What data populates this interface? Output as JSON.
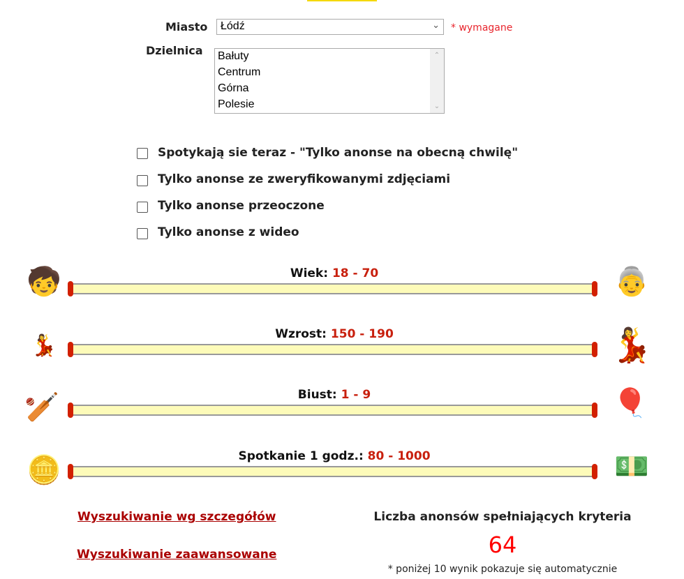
{
  "form": {
    "city_label": "Miasto",
    "city_value": "Łódź",
    "required_note": "* wymagane",
    "district_label": "Dzielnica",
    "districts": [
      "Bałuty",
      "Centrum",
      "Górna",
      "Polesie"
    ]
  },
  "checkboxes": [
    {
      "label": "Spotykają sie teraz - \"Tylko anonse na obecną chwilę\"",
      "checked": false
    },
    {
      "label": "Tylko anonse ze zweryfikowanymi zdjęciami",
      "checked": false
    },
    {
      "label": "Tylko anonse przeoczone",
      "checked": false
    },
    {
      "label": "Tylko anonse z wideo",
      "checked": false
    }
  ],
  "sliders": [
    {
      "label": "Wiek:",
      "range": "18 - 70",
      "min": 18,
      "max": 70,
      "left_icon": "boy-icon",
      "right_icon": "old-woman-icon"
    },
    {
      "label": "Wzrost:",
      "range": "150 - 190",
      "min": 150,
      "max": 190,
      "left_icon": "short-woman-icon",
      "right_icon": "tall-woman-icon"
    },
    {
      "label": "Biust:",
      "range": "1 - 9",
      "min": 1,
      "max": 9,
      "left_icon": "board-icon",
      "right_icon": "balloons-icon"
    },
    {
      "label": "Spotkanie 1 godz.:",
      "range": "80 - 1000",
      "min": 80,
      "max": 1000,
      "left_icon": "coins-icon",
      "right_icon": "banknotes-icon"
    }
  ],
  "links": {
    "details": "Wyszukiwanie wg szczegółów",
    "advanced": "Wyszukiwanie zaawansowane"
  },
  "results": {
    "title": "Liczba anonsów spełniających kryteria",
    "count": "64",
    "note": "* poniżej 10 wynik pokazuje się automatycznie"
  },
  "colors": {
    "accent": "#c8200e",
    "track": "#fdfbb9",
    "link": "#aa0000"
  }
}
